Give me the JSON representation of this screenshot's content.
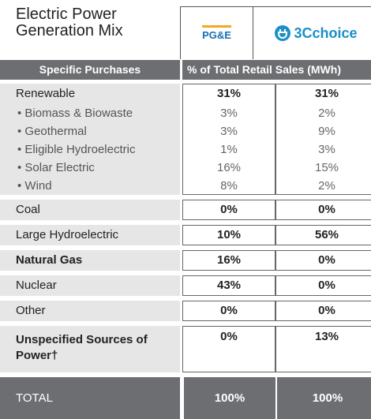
{
  "header": {
    "title_lines": [
      "Electric Power",
      "Generation Mix"
    ],
    "logos": [
      "PG&E",
      "3Cchoice"
    ]
  },
  "table": {
    "columns": [
      "Specific Purchases",
      "% of Total Retail Sales (MWh)"
    ],
    "groups": [
      {
        "rows": [
          {
            "label": "Renewable",
            "values": [
              "31%",
              "31%"
            ],
            "main": true
          },
          {
            "label": "• Biomass & Biowaste",
            "values": [
              "3%",
              "2%"
            ],
            "main": false
          },
          {
            "label": "• Geothermal",
            "values": [
              "3%",
              "9%"
            ],
            "main": false
          },
          {
            "label": "• Eligible Hydroelectric",
            "values": [
              "1%",
              "3%"
            ],
            "main": false
          },
          {
            "label": "• Solar Electric",
            "values": [
              "16%",
              "15%"
            ],
            "main": false
          },
          {
            "label": "• Wind",
            "values": [
              "8%",
              "2%"
            ],
            "main": false
          }
        ]
      },
      {
        "rows": [
          {
            "label": "Coal",
            "values": [
              "0%",
              "0%"
            ],
            "main": true
          }
        ]
      },
      {
        "rows": [
          {
            "label": "Large Hydroelectric",
            "values": [
              "10%",
              "56%"
            ],
            "main": true
          }
        ]
      },
      {
        "rows": [
          {
            "label": "Natural Gas",
            "values": [
              "16%",
              "0%"
            ],
            "main": true
          }
        ]
      },
      {
        "rows": [
          {
            "label": "Nuclear",
            "values": [
              "43%",
              "0%"
            ],
            "main": true
          }
        ]
      },
      {
        "rows": [
          {
            "label": "Other",
            "values": [
              "0%",
              "0%"
            ],
            "main": true
          }
        ]
      },
      {
        "rows": [
          {
            "label": "Unspecified Sources of Power†",
            "values": [
              "0%",
              "13%"
            ],
            "main": true,
            "tall": true
          }
        ]
      }
    ],
    "total": {
      "label": "TOTAL",
      "values": [
        "100%",
        "100%"
      ]
    }
  }
}
